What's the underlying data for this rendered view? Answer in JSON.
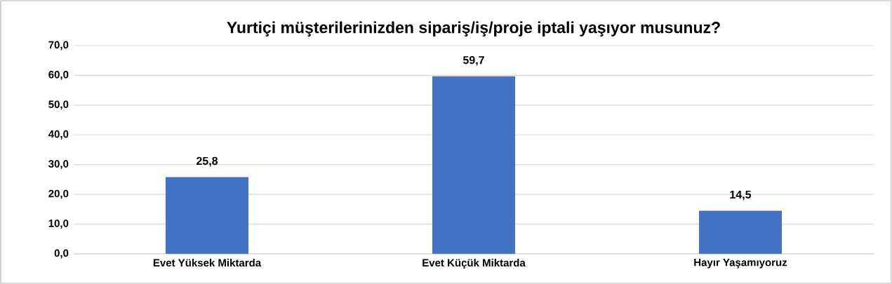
{
  "chart_data": {
    "type": "bar",
    "title": "Yurtiçi müşterilerinizden sipariş/iş/proje iptali yaşıyor musunuz?",
    "categories": [
      "Evet Yüksek Miktarda",
      "Evet Küçük Miktarda",
      "Hayır Yaşamıyoruz"
    ],
    "values": [
      25.8,
      59.7,
      14.5
    ],
    "value_labels": [
      "25,8",
      "59,7",
      "14,5"
    ],
    "color": "#4472c4",
    "ylim": [
      0,
      70
    ],
    "yticks": [
      {
        "value": 0,
        "label": "0,0"
      },
      {
        "value": 10,
        "label": "10,0"
      },
      {
        "value": 20,
        "label": "20,0"
      },
      {
        "value": 30,
        "label": "30,0"
      },
      {
        "value": 40,
        "label": "40,0"
      },
      {
        "value": 50,
        "label": "50,0"
      },
      {
        "value": 60,
        "label": "60,0"
      },
      {
        "value": 70,
        "label": "70,0"
      }
    ],
    "grid": "y"
  }
}
